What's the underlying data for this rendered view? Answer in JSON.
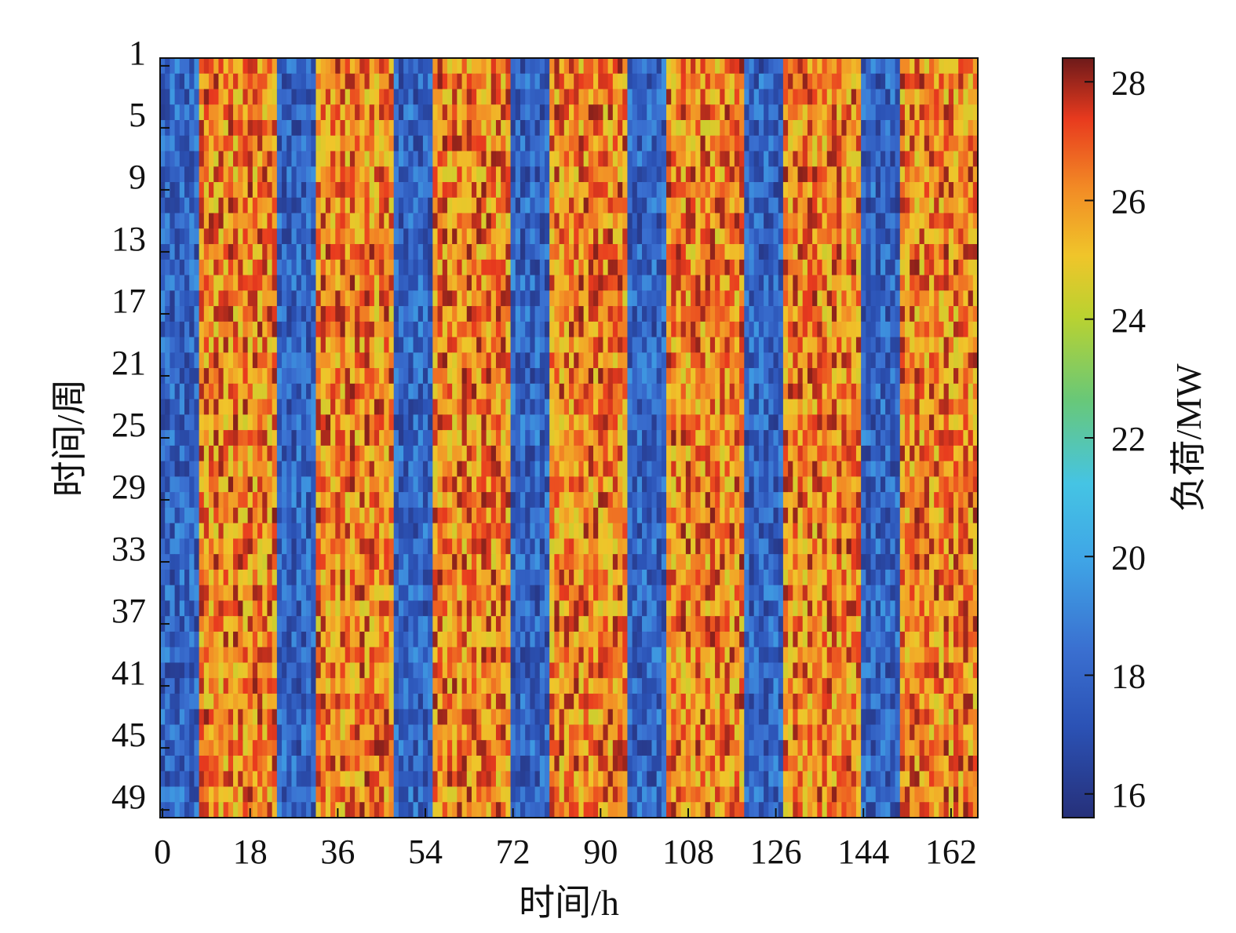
{
  "chart_data": {
    "type": "heatmap",
    "title": "",
    "xlabel": "时间/h",
    "ylabel": "时间/周",
    "colorbar_label": "负荷/MW",
    "x_ticks": [
      "0",
      "18",
      "36",
      "54",
      "72",
      "90",
      "108",
      "126",
      "144",
      "162"
    ],
    "x_tick_values": [
      0,
      18,
      36,
      54,
      72,
      90,
      108,
      126,
      144,
      162
    ],
    "y_ticks": [
      "1",
      "5",
      "9",
      "13",
      "17",
      "21",
      "25",
      "29",
      "33",
      "37",
      "41",
      "45",
      "49"
    ],
    "y_tick_values": [
      1,
      5,
      9,
      13,
      17,
      21,
      25,
      29,
      33,
      37,
      41,
      45,
      49
    ],
    "x_range": [
      0,
      168
    ],
    "y_range": [
      1,
      49
    ],
    "colorbar_ticks": [
      "16",
      "18",
      "20",
      "22",
      "24",
      "26",
      "28"
    ],
    "colorbar_range": [
      15.6,
      28.4
    ],
    "colormap": "jet-like (dark blue → blue → cyan → green → yellow → orange → red → dark red)",
    "pattern": {
      "description_of_hourly_profile": "Load by hour-of-day within each week row; 7 days × 24 h. Low load (≈16–19.5 MW) during hours 0–8 of each day (night), high load (≈24.5–28.2 MW) during hours 8–24 (day).",
      "low_hours_each_day": [
        0,
        8
      ],
      "high_hours_each_day": [
        8,
        24
      ],
      "low_range_mw": [
        16.0,
        19.6
      ],
      "high_range_mw": [
        24.4,
        28.2
      ]
    }
  }
}
